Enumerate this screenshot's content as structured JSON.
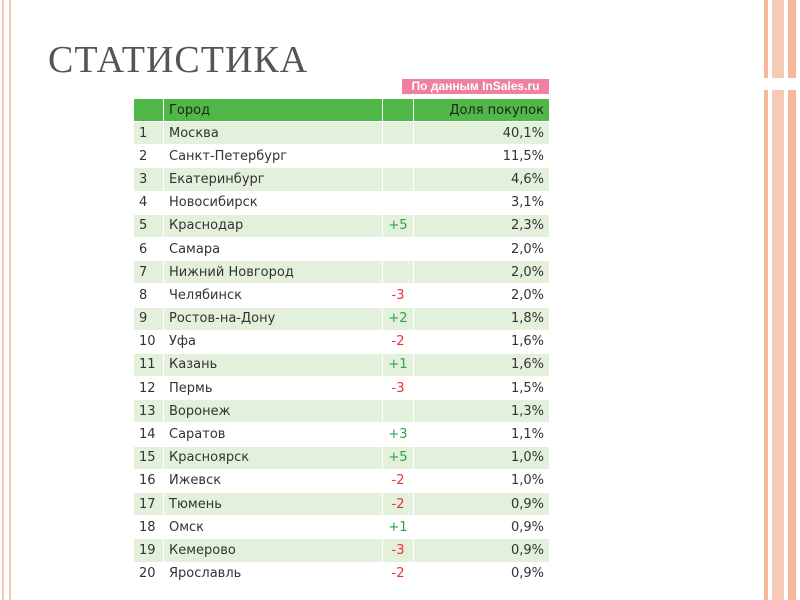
{
  "title": "Статистика",
  "source": "По данным InSales.ru",
  "table": {
    "header": [
      "Город",
      "Доля покупок"
    ],
    "rows": [
      [
        "1",
        "Москва",
        null,
        "40,1%"
      ],
      [
        "2",
        "Санкт-Петербург",
        null,
        "11,5%"
      ],
      [
        "3",
        "Екатеринбург",
        null,
        "4,6%"
      ],
      [
        "4",
        "Новосибирск",
        null,
        "3,1%"
      ],
      [
        "5",
        "Краснодар",
        "+5",
        "2,3%"
      ],
      [
        "6",
        "Самара",
        null,
        "2,0%"
      ],
      [
        "7",
        "Нижний Новгород",
        null,
        "2,0%"
      ],
      [
        "8",
        "Челябинск",
        "-3",
        "2,0%"
      ],
      [
        "9",
        "Ростов-на-Дону",
        "+2",
        "1,8%"
      ],
      [
        "10",
        "Уфа",
        "-2",
        "1,6%"
      ],
      [
        "11",
        "Казань",
        "+1",
        "1,6%"
      ],
      [
        "12",
        "Пермь",
        "-3",
        "1,5%"
      ],
      [
        "13",
        "Воронеж",
        null,
        "1,3%"
      ],
      [
        "14",
        "Саратов",
        "+3",
        "1,1%"
      ],
      [
        "15",
        "Красноярск",
        "+5",
        "1,0%"
      ],
      [
        "16",
        "Ижевск",
        "-2",
        "1,0%"
      ],
      [
        "17",
        "Тюмень",
        "-2",
        "0,9%"
      ],
      [
        "18",
        "Омск",
        "+1",
        "0,9%"
      ],
      [
        "19",
        "Кемерово",
        "-3",
        "0,9%"
      ],
      [
        "20",
        "Ярославль",
        "-2",
        "0,9%"
      ]
    ]
  }
}
